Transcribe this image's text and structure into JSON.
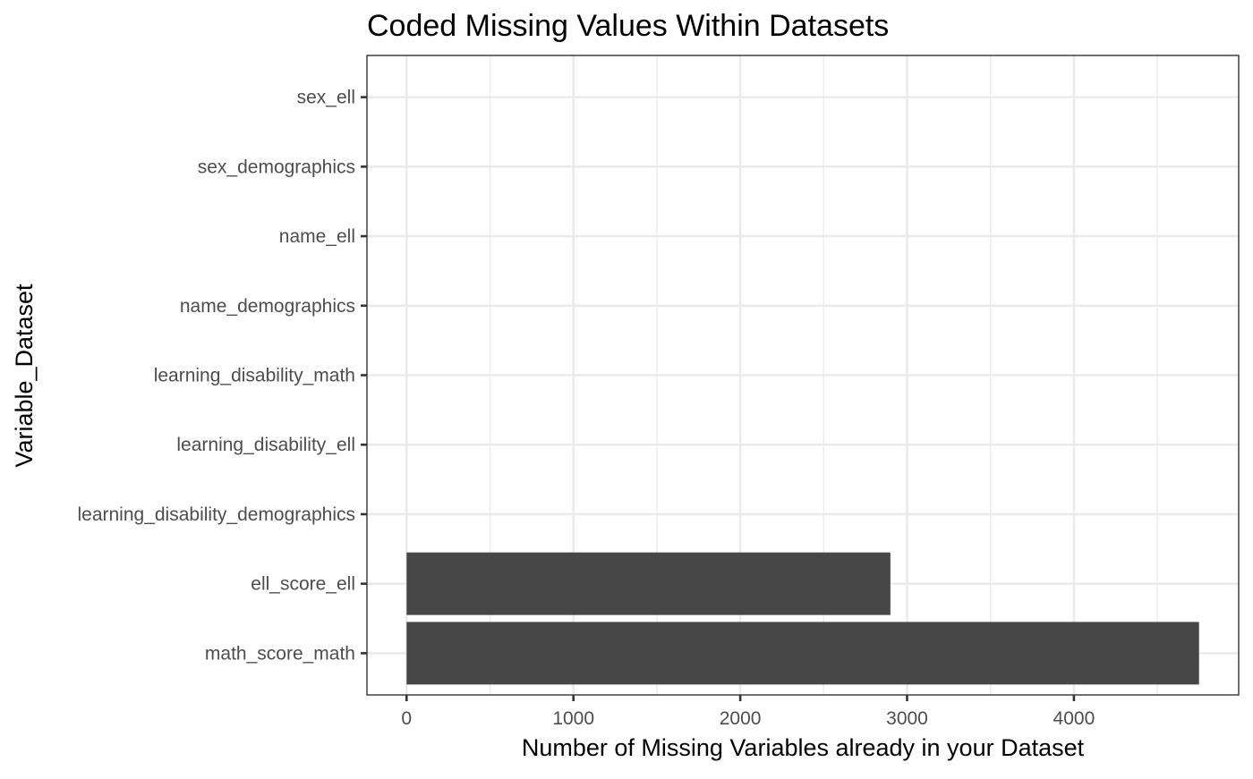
{
  "chart_data": {
    "type": "bar",
    "orientation": "horizontal",
    "title": "Coded Missing Values Within Datasets",
    "xlabel": "Number of Missing Variables already in your Dataset",
    "ylabel": "Variable_Dataset",
    "categories": [
      "math_score_math",
      "ell_score_ell",
      "learning_disability_demographics",
      "learning_disability_ell",
      "learning_disability_math",
      "name_demographics",
      "name_ell",
      "sex_demographics",
      "sex_ell"
    ],
    "values": [
      4750,
      2900,
      0,
      0,
      0,
      0,
      0,
      0,
      0
    ],
    "xlim": [
      -237.5,
      4987.5
    ],
    "xticks": [
      0,
      1000,
      2000,
      3000,
      4000
    ],
    "xtick_labels": [
      "0",
      "1000",
      "2000",
      "3000",
      "4000"
    ],
    "grid": true,
    "legend": "none",
    "bar_color": "#474747",
    "theme": "bw"
  }
}
